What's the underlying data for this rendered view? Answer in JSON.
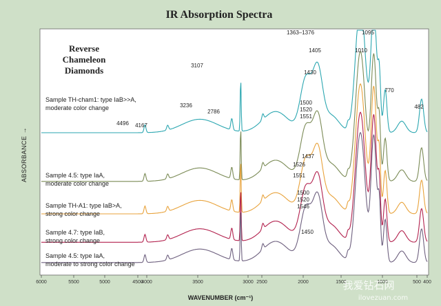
{
  "chart_data": {
    "type": "line",
    "title": "IR Absorption Spectra",
    "inset_title": [
      "Reverse",
      "Chameleon",
      "Diamonds"
    ],
    "xlabel": "WAVENUMBER (cm⁻¹)",
    "ylabel": "ABSORBANCE →",
    "xlim": [
      6000,
      400
    ],
    "x_ticks": [
      "6000",
      "5500",
      "5000",
      "4500",
      "4000",
      "3500",
      "3000",
      "2500",
      "2000",
      "1500",
      "1000",
      "500",
      "400"
    ],
    "grid": false,
    "series": [
      {
        "name": "Sample TH-cham1: type IaB>>A, moderate color change",
        "label_lines": [
          "Sample TH-cham1: type IaB>>A,",
          "moderate color change"
        ],
        "color": "#2aa6b0",
        "offset": 0.0
      },
      {
        "name": "Sample 4.5: type IaA, moderate color change",
        "label_lines": [
          "Sample 4.5: type IaA,",
          "moderate color change"
        ],
        "color": "#7a8a55",
        "offset": 0.6
      },
      {
        "name": "Sample TH-A1: type IaB>A, strong color change",
        "label_lines": [
          "Sample TH-A1: type IaB>A,",
          "strong color change"
        ],
        "color": "#e8a23a",
        "offset": 1.0
      },
      {
        "name": "Sample 4.7: type IaB, strong color change",
        "label_lines": [
          "Sample 4.7: type IaB,",
          "strong color change"
        ],
        "color": "#b2204d",
        "offset": 1.35
      },
      {
        "name": "Sample 4.5: type IaA, moderate to strong color change",
        "label_lines": [
          "Sample 4.5: type IaA,",
          "moderate to strong color change"
        ],
        "color": "#6d5f7e",
        "offset": 1.6
      }
    ],
    "annotations": [
      {
        "text": "1363–1376",
        "x": 1370
      },
      {
        "text": "1095",
        "x": 1095
      },
      {
        "text": "1405",
        "x": 1405
      },
      {
        "text": "1010",
        "x": 1010
      },
      {
        "text": "3107",
        "x": 3107
      },
      {
        "text": "1430",
        "x": 1430
      },
      {
        "text": "770",
        "x": 770
      },
      {
        "text": "3236",
        "x": 3236
      },
      {
        "text": "2786",
        "x": 2786
      },
      {
        "text": "482",
        "x": 482
      },
      {
        "text": "1500",
        "x": 1500
      },
      {
        "text": "1520",
        "x": 1520
      },
      {
        "text": "1551",
        "x": 1551
      },
      {
        "text": "4496",
        "x": 4496
      },
      {
        "text": "4167",
        "x": 4167
      },
      {
        "text": "1437",
        "x": 1437
      },
      {
        "text": "1526",
        "x": 1526
      },
      {
        "text": "1551",
        "x": 1551
      },
      {
        "text": "1500",
        "x": 1500
      },
      {
        "text": "1520",
        "x": 1520
      },
      {
        "text": "1546",
        "x": 1546
      },
      {
        "text": "1450",
        "x": 1450
      }
    ]
  },
  "watermark": {
    "cn": "我爱钻石网",
    "url": "ilovezuan.com"
  }
}
